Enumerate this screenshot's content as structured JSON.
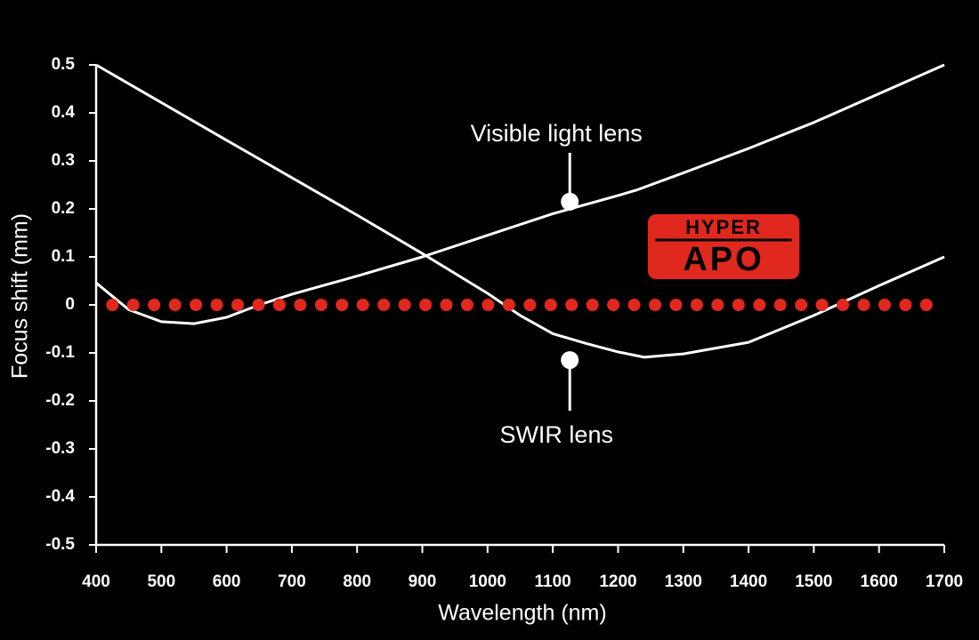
{
  "chart_data": {
    "type": "line",
    "xlabel": "Wavelength (nm)",
    "ylabel": "Focus shift (mm)",
    "xlim": [
      400,
      1700
    ],
    "ylim": [
      -0.5,
      0.5
    ],
    "xticks": [
      400,
      500,
      600,
      700,
      800,
      900,
      1000,
      1100,
      1200,
      1300,
      1400,
      1500,
      1600,
      1700
    ],
    "yticks": [
      0.5,
      0.4,
      0.3,
      0.2,
      0.1,
      0,
      -0.1,
      -0.2,
      -0.3,
      -0.4,
      -0.5
    ],
    "series": [
      {
        "name": "Visible light lens",
        "color": "#ffffff",
        "style": "solid",
        "x": [
          400,
          450,
          500,
          550,
          600,
          650,
          700,
          800,
          900,
          1000,
          1100,
          1200,
          1230,
          1300,
          1400,
          1500,
          1600,
          1700
        ],
        "values": [
          0.046,
          -0.01,
          -0.035,
          -0.039,
          -0.026,
          0.0,
          0.022,
          0.06,
          0.1,
          0.145,
          0.19,
          0.228,
          0.24,
          0.275,
          0.326,
          0.38,
          0.44,
          0.5
        ]
      },
      {
        "name": "SWIR lens",
        "color": "#ffffff",
        "style": "solid",
        "x": [
          400,
          600,
          800,
          900,
          1000,
          1050,
          1100,
          1150,
          1200,
          1240,
          1300,
          1400,
          1500,
          1600,
          1700
        ],
        "values": [
          0.5,
          0.343,
          0.187,
          0.107,
          0.024,
          -0.022,
          -0.06,
          -0.08,
          -0.098,
          -0.109,
          -0.102,
          -0.078,
          -0.022,
          0.04,
          0.1
        ]
      },
      {
        "color": "#e0281e",
        "style": "dotted",
        "x": [
          425,
          1700
        ],
        "values": [
          0,
          0
        ]
      }
    ],
    "annotations": [
      {
        "text": "Visible light lens",
        "x": 1126,
        "y": 0.215,
        "side": "above"
      },
      {
        "text": "SWIR lens",
        "x": 1126,
        "y": -0.115,
        "side": "below"
      }
    ],
    "badge": [
      "HYPER",
      "APO"
    ]
  }
}
